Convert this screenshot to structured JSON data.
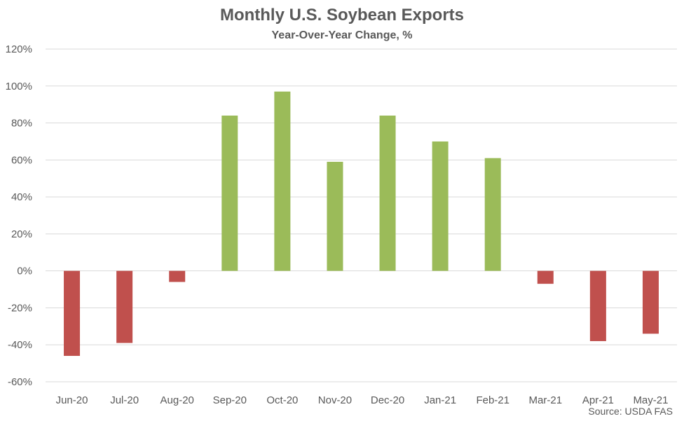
{
  "chart_data": {
    "type": "bar",
    "title": "Monthly U.S. Soybean Exports",
    "subtitle": "Year-Over-Year Change, %",
    "source": "Source: USDA FAS",
    "xlabel": "",
    "ylabel": "",
    "categories": [
      "Jun-20",
      "Jul-20",
      "Aug-20",
      "Sep-20",
      "Oct-20",
      "Nov-20",
      "Dec-20",
      "Jan-21",
      "Feb-21",
      "Mar-21",
      "Apr-21",
      "May-21"
    ],
    "values": [
      -46,
      -39,
      -6,
      84,
      97,
      59,
      84,
      70,
      61,
      -7,
      -38,
      -34
    ],
    "ylim": [
      -60,
      120
    ],
    "yticks": [
      -60,
      -40,
      -20,
      0,
      20,
      40,
      60,
      80,
      100,
      120
    ],
    "ytick_labels": [
      "-60%",
      "-40%",
      "-20%",
      "0%",
      "20%",
      "40%",
      "60%",
      "80%",
      "100%",
      "120%"
    ],
    "grid": true,
    "legend": "none",
    "colors": {
      "positive": "#9bbb59",
      "negative": "#c0504d",
      "grid": "#d9d9d9",
      "text": "#595959"
    }
  }
}
